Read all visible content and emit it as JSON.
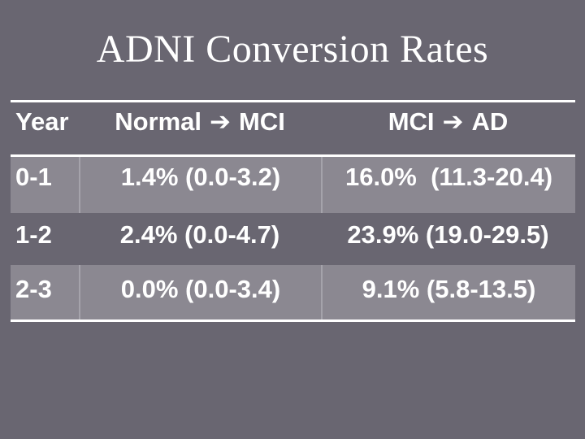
{
  "slide": {
    "title": "ADNI Conversion Rates",
    "background_color": "#696671",
    "band_color": "#8b8891",
    "text_color": "#ffffff"
  },
  "table": {
    "arrow_glyph": "➔",
    "columns": [
      {
        "label": "Year"
      },
      {
        "from": "Normal",
        "to": "MCI"
      },
      {
        "from": "MCI",
        "to": "AD"
      }
    ],
    "rows": [
      {
        "year": "0-1",
        "normal_to_mci": "1.4% (0.0-3.2)",
        "mci_to_ad": "16.0%  (11.3-20.4)"
      },
      {
        "year": "1-2",
        "normal_to_mci": "2.4% (0.0-4.7)",
        "mci_to_ad": "23.9% (19.0-29.5)"
      },
      {
        "year": "2-3",
        "normal_to_mci": "0.0% (0.0-3.4)",
        "mci_to_ad": "9.1% (5.8-13.5)"
      }
    ]
  },
  "chart_data": {
    "type": "table",
    "title": "ADNI Conversion Rates",
    "columns": [
      "Year",
      "Normal ➔ MCI",
      "MCI ➔ AD"
    ],
    "rows": [
      [
        "0-1",
        "1.4% (0.0-3.2)",
        "16.0% (11.3-20.4)"
      ],
      [
        "1-2",
        "2.4% (0.0-4.7)",
        "23.9% (19.0-29.5)"
      ],
      [
        "2-3",
        "0.0% (0.0-3.4)",
        "9.1% (5.8-13.5)"
      ]
    ]
  }
}
